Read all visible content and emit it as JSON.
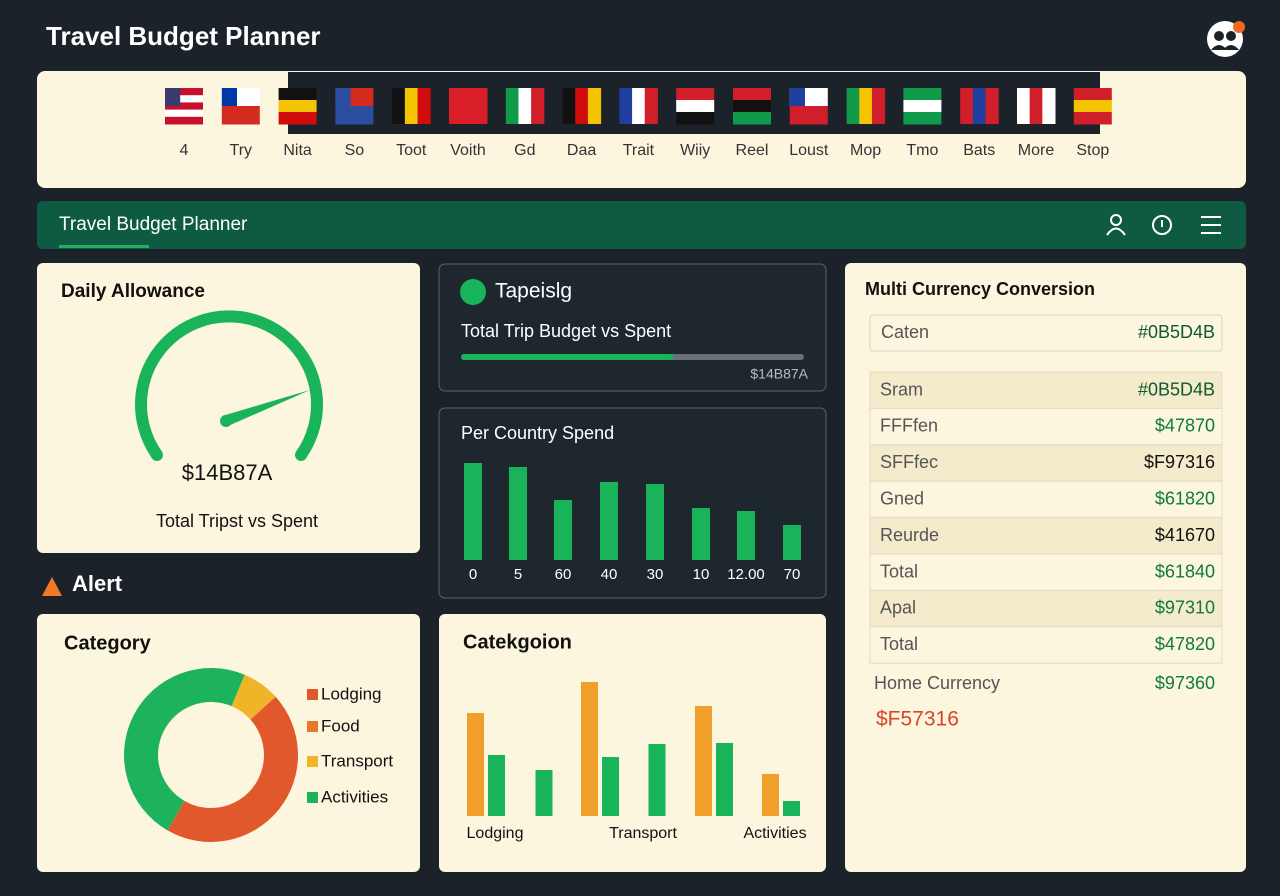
{
  "header": {
    "title": "Travel Budget Planner"
  },
  "countries": [
    "4",
    "Try",
    "Nita",
    "So",
    "Toot",
    "Voith",
    "Gd",
    "Daa",
    "Trait",
    "Wiiy",
    "Reel",
    "Loust",
    "Mop",
    "Tmo",
    "Bats",
    "More",
    "Stop"
  ],
  "nav": {
    "title": "Travel Budget Planner"
  },
  "daily_allowance": {
    "title": "Daily Allowance",
    "value": "$14B87A",
    "caption": "Total Tripst vs Spent"
  },
  "alert": "Alert",
  "trip_budget": {
    "title": "Tapeislg",
    "subtitle": "Total Trip Budget vs Spent",
    "label": "$14B87A",
    "progress": 62
  },
  "country_spend": {
    "type": "bar",
    "title": "Per Country Spend",
    "categories": [
      "0",
      "5",
      "60",
      "40",
      "30",
      "10",
      "12.00",
      "70"
    ],
    "values": [
      97,
      93,
      60,
      78,
      76,
      52,
      49,
      35
    ],
    "color": "#19b35a",
    "ylim": [
      0,
      100
    ]
  },
  "category": {
    "type": "pie",
    "title": "Category",
    "categories": [
      "Lodging",
      "Food",
      "Transport",
      "Activities"
    ],
    "values": [
      45,
      0,
      7,
      48
    ],
    "colors": [
      "#e0582c",
      "#e8782c",
      "#f0b429",
      "#1db35c"
    ]
  },
  "category_bars": {
    "type": "bar",
    "title": "Catekgoion",
    "categories": [
      "Lodging",
      null,
      "Transport",
      null,
      null,
      "Activities"
    ],
    "series": [
      {
        "color": "#f0a02a",
        "values": [
          103,
          null,
          134,
          null,
          110,
          42
        ]
      },
      {
        "color": "#19b35a",
        "values": [
          61,
          46,
          59,
          72,
          73,
          15
        ]
      }
    ],
    "ylim": [
      0,
      150
    ]
  },
  "currency": {
    "title": "Multi Currency Conversion",
    "search": {
      "label": "Caten",
      "value": "#0B5D4B"
    },
    "rows": [
      {
        "label": "Sram",
        "value": "#0B5D4B",
        "color": "#0e5a30"
      },
      {
        "label": "FFFfen",
        "value": "$47870",
        "color": "#0e7a3a"
      },
      {
        "label": "SFFfec",
        "value": "$F97316",
        "color": "#111111"
      },
      {
        "label": "Gned",
        "value": "$61820",
        "color": "#0e7a3a"
      },
      {
        "label": "Reurde",
        "value": "$41670",
        "color": "#111111"
      },
      {
        "label": "Total",
        "value": "$61840",
        "color": "#0e7a3a"
      },
      {
        "label": "Apal",
        "value": "$97310",
        "color": "#0e7a3a"
      },
      {
        "label": "Total",
        "value": "$47820",
        "color": "#0e7a3a"
      }
    ],
    "home": {
      "label": "Home Currency",
      "value": "$97360"
    },
    "total": "$F57316"
  }
}
